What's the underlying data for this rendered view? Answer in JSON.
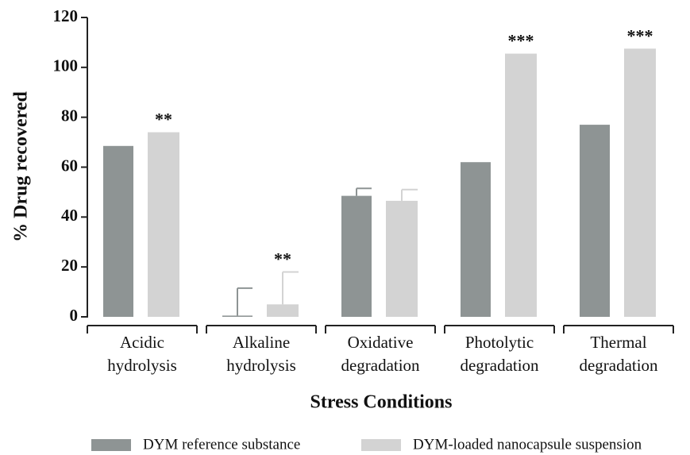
{
  "chart_data": {
    "type": "bar",
    "ylabel": "% Drug recovered",
    "xlabel": "Stress Conditions",
    "categories": [
      [
        "Acidic",
        "hydrolysis"
      ],
      [
        "Alkaline",
        "hydrolysis"
      ],
      [
        "Oxidative",
        "degradation"
      ],
      [
        "Photolytic",
        "degradation"
      ],
      [
        "Thermal",
        "degradation"
      ]
    ],
    "series": [
      {
        "name": "DYM reference substance",
        "color": "#8e9494",
        "values": [
          68.5,
          0.5,
          48.5,
          62,
          77
        ],
        "errors": [
          null,
          11,
          3,
          null,
          null
        ],
        "labels": [
          null,
          null,
          null,
          null,
          null
        ]
      },
      {
        "name": "DYM-loaded nanocapsule suspension",
        "color": "#d3d3d3",
        "values": [
          74,
          5,
          46.5,
          105.5,
          107.5
        ],
        "errors": [
          null,
          13,
          4.5,
          null,
          null
        ],
        "labels": [
          "**",
          "**",
          null,
          "***",
          "***"
        ]
      }
    ],
    "ylim": [
      0,
      120
    ],
    "yticks": [
      0,
      20,
      40,
      60,
      80,
      100,
      120
    ],
    "legend": "bottom"
  }
}
